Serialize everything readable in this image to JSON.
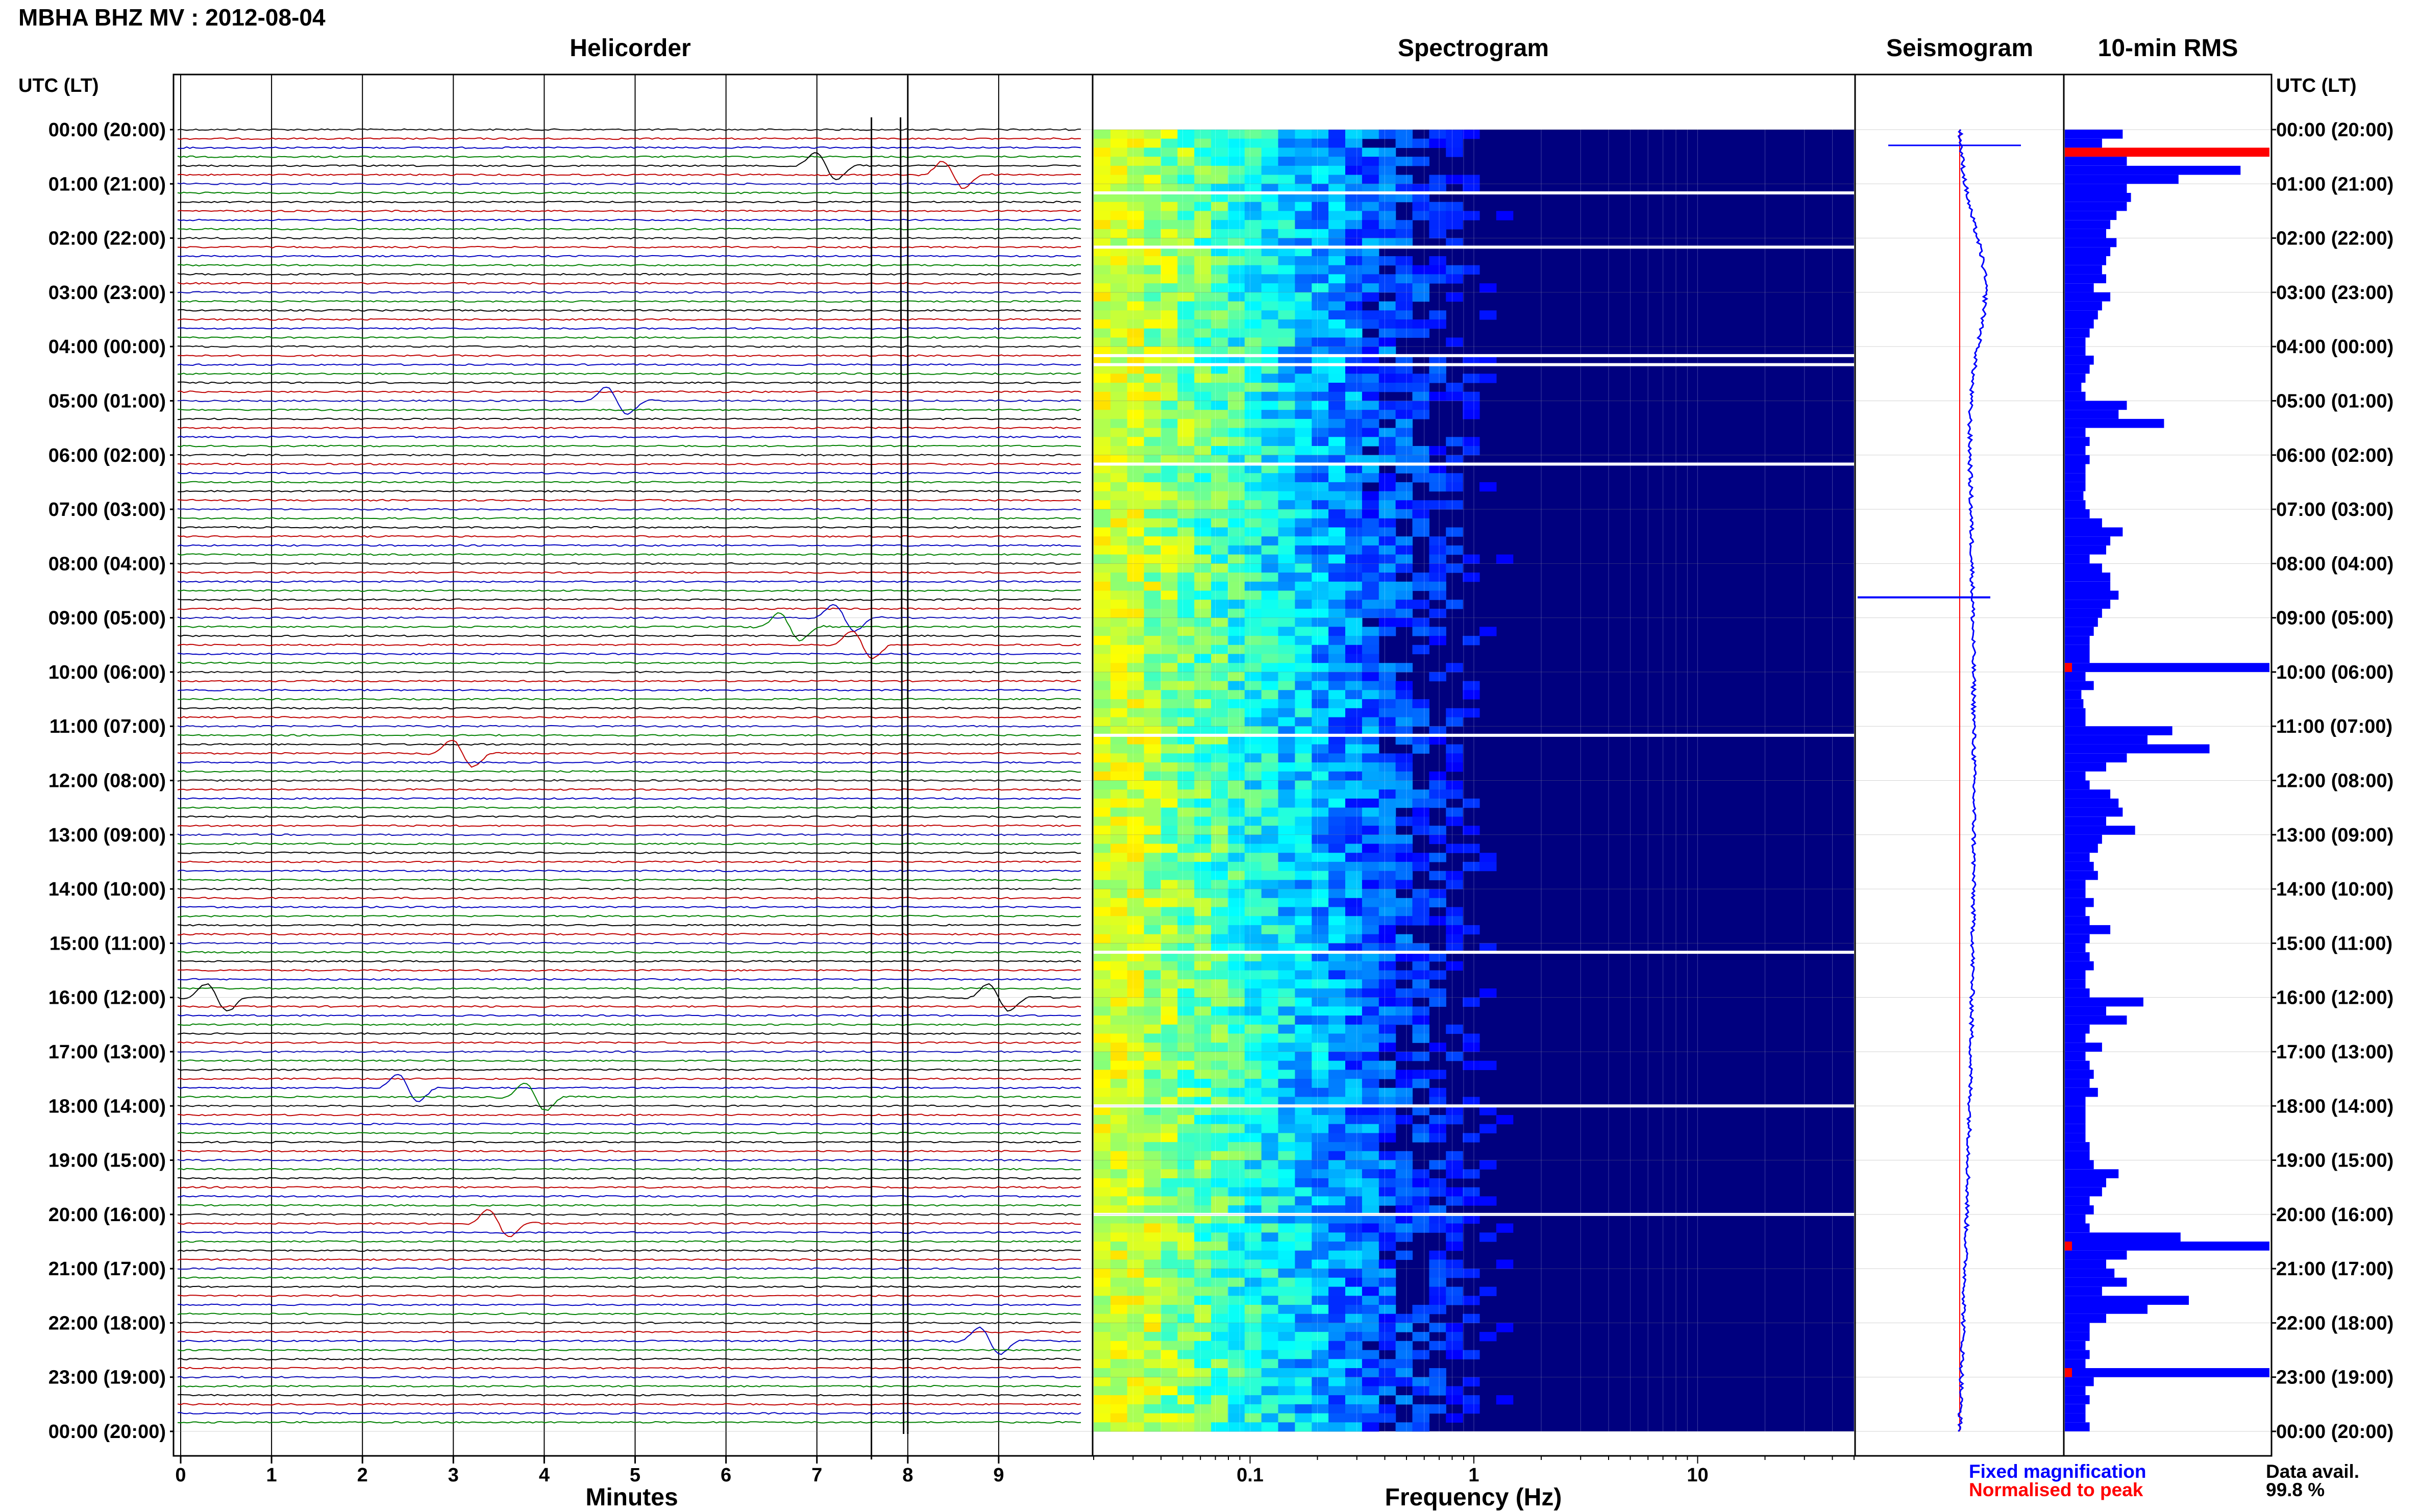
{
  "header": {
    "title": "MBHA BHZ MV : 2012-08-04"
  },
  "panels": {
    "helicorder": "Helicorder",
    "spectrogram": "Spectrogram",
    "seismogram": "Seismogram",
    "rms": "10-min RMS"
  },
  "axes": {
    "left_time_label": "UTC (LT)",
    "right_time_label": "UTC (LT)",
    "helicorder_xlabel": "Minutes",
    "spectrogram_xlabel": "Frequency (Hz)"
  },
  "time_ticks": [
    "00:00 (20:00)",
    "01:00 (21:00)",
    "02:00 (22:00)",
    "03:00 (23:00)",
    "04:00 (00:00)",
    "05:00 (01:00)",
    "06:00 (02:00)",
    "07:00 (03:00)",
    "08:00 (04:00)",
    "09:00 (05:00)",
    "10:00 (06:00)",
    "11:00 (07:00)",
    "12:00 (08:00)",
    "13:00 (09:00)",
    "14:00 (10:00)",
    "15:00 (11:00)",
    "16:00 (12:00)",
    "17:00 (13:00)",
    "18:00 (14:00)",
    "19:00 (15:00)",
    "20:00 (16:00)",
    "21:00 (17:00)",
    "22:00 (18:00)",
    "23:00 (19:00)",
    "00:00 (20:00)"
  ],
  "minute_ticks": [
    "0",
    "1",
    "2",
    "3",
    "4",
    "5",
    "6",
    "7",
    "8",
    "9"
  ],
  "freq_ticks": [
    "0.1",
    "1",
    "10"
  ],
  "legend": {
    "fixed": "Fixed magnification",
    "normalised": "Normalised to peak",
    "avail_label": "Data avail.",
    "avail_value": "99.8 %"
  },
  "colors": {
    "trace_cycle": [
      "#000000",
      "#c00000",
      "#0000c0",
      "#008000"
    ],
    "fixed": "#0000ff",
    "normalised": "#ff0000",
    "spec_background": "#00007f"
  },
  "chart_data": [
    {
      "type": "line",
      "panel": "Helicorder",
      "xlabel": "Minutes",
      "x_range": [
        0,
        10
      ],
      "rows_per_hour": 6,
      "traces": 144,
      "events": [
        {
          "time_utc": "00:40",
          "minute": 7.1
        },
        {
          "time_utc": "00:50",
          "minute": 8.5
        },
        {
          "time_utc": "05:00",
          "minute": 4.8
        },
        {
          "time_utc": "09:00",
          "minute": 7.3
        },
        {
          "time_utc": "09:10",
          "minute": 6.7
        },
        {
          "time_utc": "09:30",
          "minute": 7.5
        },
        {
          "time_utc": "11:30",
          "minute": 3.1
        },
        {
          "time_utc": "16:00",
          "minute": 9.0
        },
        {
          "time_utc": "16:00",
          "minute": 0.4
        },
        {
          "time_utc": "17:40",
          "minute": 2.5
        },
        {
          "time_utc": "17:50",
          "minute": 3.9
        },
        {
          "time_utc": "20:10",
          "minute": 3.5
        },
        {
          "time_utc": "22:20",
          "minute": 8.9
        }
      ]
    },
    {
      "type": "heatmap",
      "panel": "Spectrogram",
      "xlabel": "Frequency (Hz)",
      "x_scale": "log",
      "x_range": [
        0.02,
        50
      ],
      "gaps_utc": [
        "01:10",
        "02:10",
        "04:10",
        "04:20",
        "06:10",
        "11:10",
        "15:10",
        "18:00",
        "20:00"
      ],
      "colormap": "jet"
    },
    {
      "type": "line",
      "panel": "Seismogram",
      "series": [
        {
          "name": "Fixed magnification",
          "color": "#0000ff"
        },
        {
          "name": "Normalised to peak",
          "color": "#ff0000"
        }
      ]
    },
    {
      "type": "bar",
      "panel": "10-min RMS",
      "orientation": "horizontal",
      "scale_max": 1.0,
      "values": [
        0.28,
        0.18,
        0.99,
        0.3,
        0.85,
        0.55,
        0.3,
        0.32,
        0.3,
        0.25,
        0.22,
        0.2,
        0.25,
        0.22,
        0.2,
        0.18,
        0.2,
        0.14,
        0.22,
        0.18,
        0.16,
        0.14,
        0.12,
        0.1,
        0.1,
        0.14,
        0.12,
        0.1,
        0.08,
        0.1,
        0.3,
        0.26,
        0.48,
        0.1,
        0.12,
        0.1,
        0.12,
        0.1,
        0.1,
        0.1,
        0.09,
        0.1,
        0.12,
        0.18,
        0.28,
        0.22,
        0.2,
        0.12,
        0.18,
        0.22,
        0.22,
        0.26,
        0.22,
        0.18,
        0.16,
        0.14,
        0.12,
        0.12,
        0.12,
        0.99,
        0.1,
        0.14,
        0.08,
        0.09,
        0.1,
        0.1,
        0.52,
        0.4,
        0.7,
        0.3,
        0.2,
        0.1,
        0.12,
        0.22,
        0.26,
        0.28,
        0.2,
        0.34,
        0.18,
        0.16,
        0.12,
        0.14,
        0.16,
        0.1,
        0.1,
        0.14,
        0.1,
        0.12,
        0.22,
        0.12,
        0.1,
        0.12,
        0.14,
        0.1,
        0.1,
        0.12,
        0.38,
        0.2,
        0.3,
        0.12,
        0.1,
        0.18,
        0.1,
        0.12,
        0.14,
        0.12,
        0.16,
        0.1,
        0.1,
        0.1,
        0.1,
        0.1,
        0.12,
        0.12,
        0.14,
        0.26,
        0.2,
        0.18,
        0.12,
        0.14,
        0.1,
        0.12,
        0.56,
        0.99,
        0.3,
        0.2,
        0.24,
        0.3,
        0.18,
        0.6,
        0.4,
        0.2,
        0.12,
        0.12,
        0.1,
        0.12,
        0.1,
        0.99,
        0.14,
        0.1,
        0.12,
        0.1,
        0.1,
        0.12
      ]
    }
  ]
}
